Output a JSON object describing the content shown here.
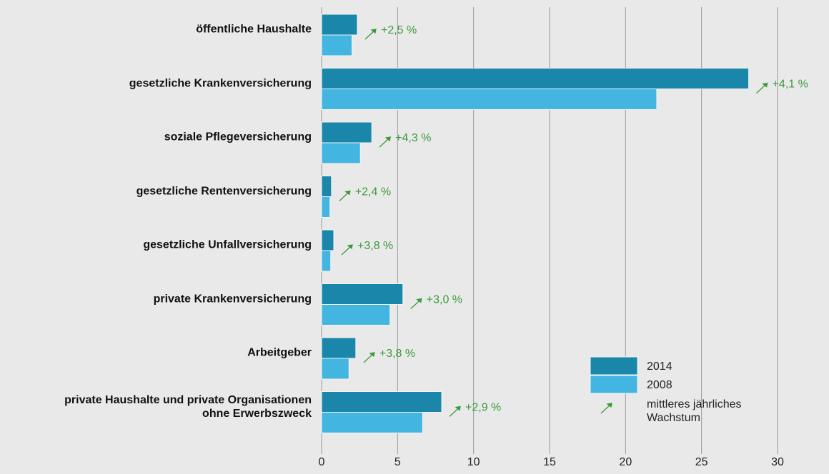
{
  "chart_data": {
    "type": "bar",
    "orientation": "horizontal",
    "categories": [
      "öffentliche Haushalte",
      "gesetzliche Krankenversicherung",
      "soziale Pflegeversicherung",
      "gesetzliche Rentenversicherung",
      "gesetzliche Unfallversicherung",
      "private Krankenversicherung",
      "Arbeitgeber",
      "private Haushalte und private Organisationen\nohne Erwerbszweck"
    ],
    "series": [
      {
        "name": "2014",
        "color": "#1a86a9",
        "values": [
          2.35,
          28.1,
          3.3,
          0.65,
          0.8,
          5.35,
          2.25,
          7.9
        ]
      },
      {
        "name": "2008",
        "color": "#43b5e1",
        "values": [
          2.0,
          22.05,
          2.55,
          0.55,
          0.6,
          4.5,
          1.8,
          6.65
        ]
      }
    ],
    "growth_labels": [
      "+2,5 %",
      "+4,1 %",
      "+4,3 %",
      "+2,4 %",
      "+3,8 %",
      "+3,0 %",
      "+3,8 %",
      "+2,9 %"
    ],
    "growth_legend": "mittleres jährliches\nWachstum",
    "growth_color": "#3c9a3c",
    "xlim": [
      0,
      30
    ],
    "xticks": [
      0,
      5,
      10,
      15,
      20,
      25,
      30
    ],
    "grid": true
  }
}
